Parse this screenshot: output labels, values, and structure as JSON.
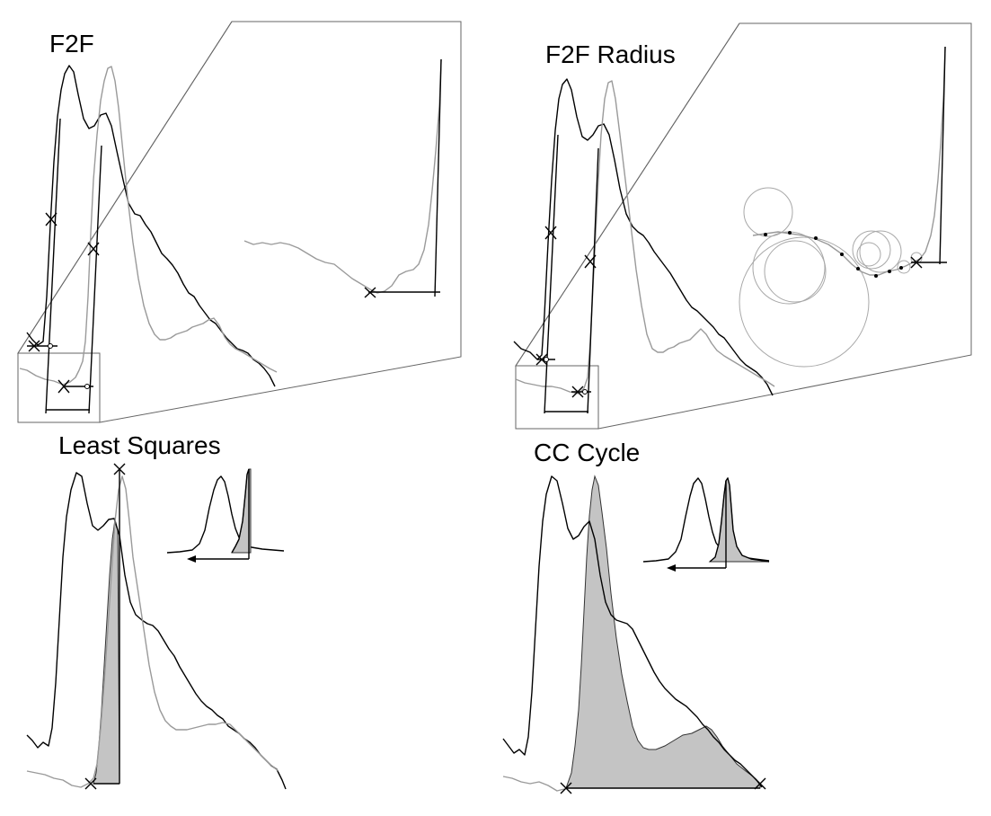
{
  "panels": [
    {
      "id": "f2f",
      "title": "F2F"
    },
    {
      "id": "f2f-radius",
      "title": "F2F Radius"
    },
    {
      "id": "least-squares",
      "title": "Least Squares"
    },
    {
      "id": "cc-cycle",
      "title": "CC Cycle"
    }
  ],
  "colors": {
    "proximal_waveform": "#000000",
    "distal_waveform": "#9a9a9a",
    "shaded_area": "#c4c4c4",
    "frame": "#666666"
  }
}
